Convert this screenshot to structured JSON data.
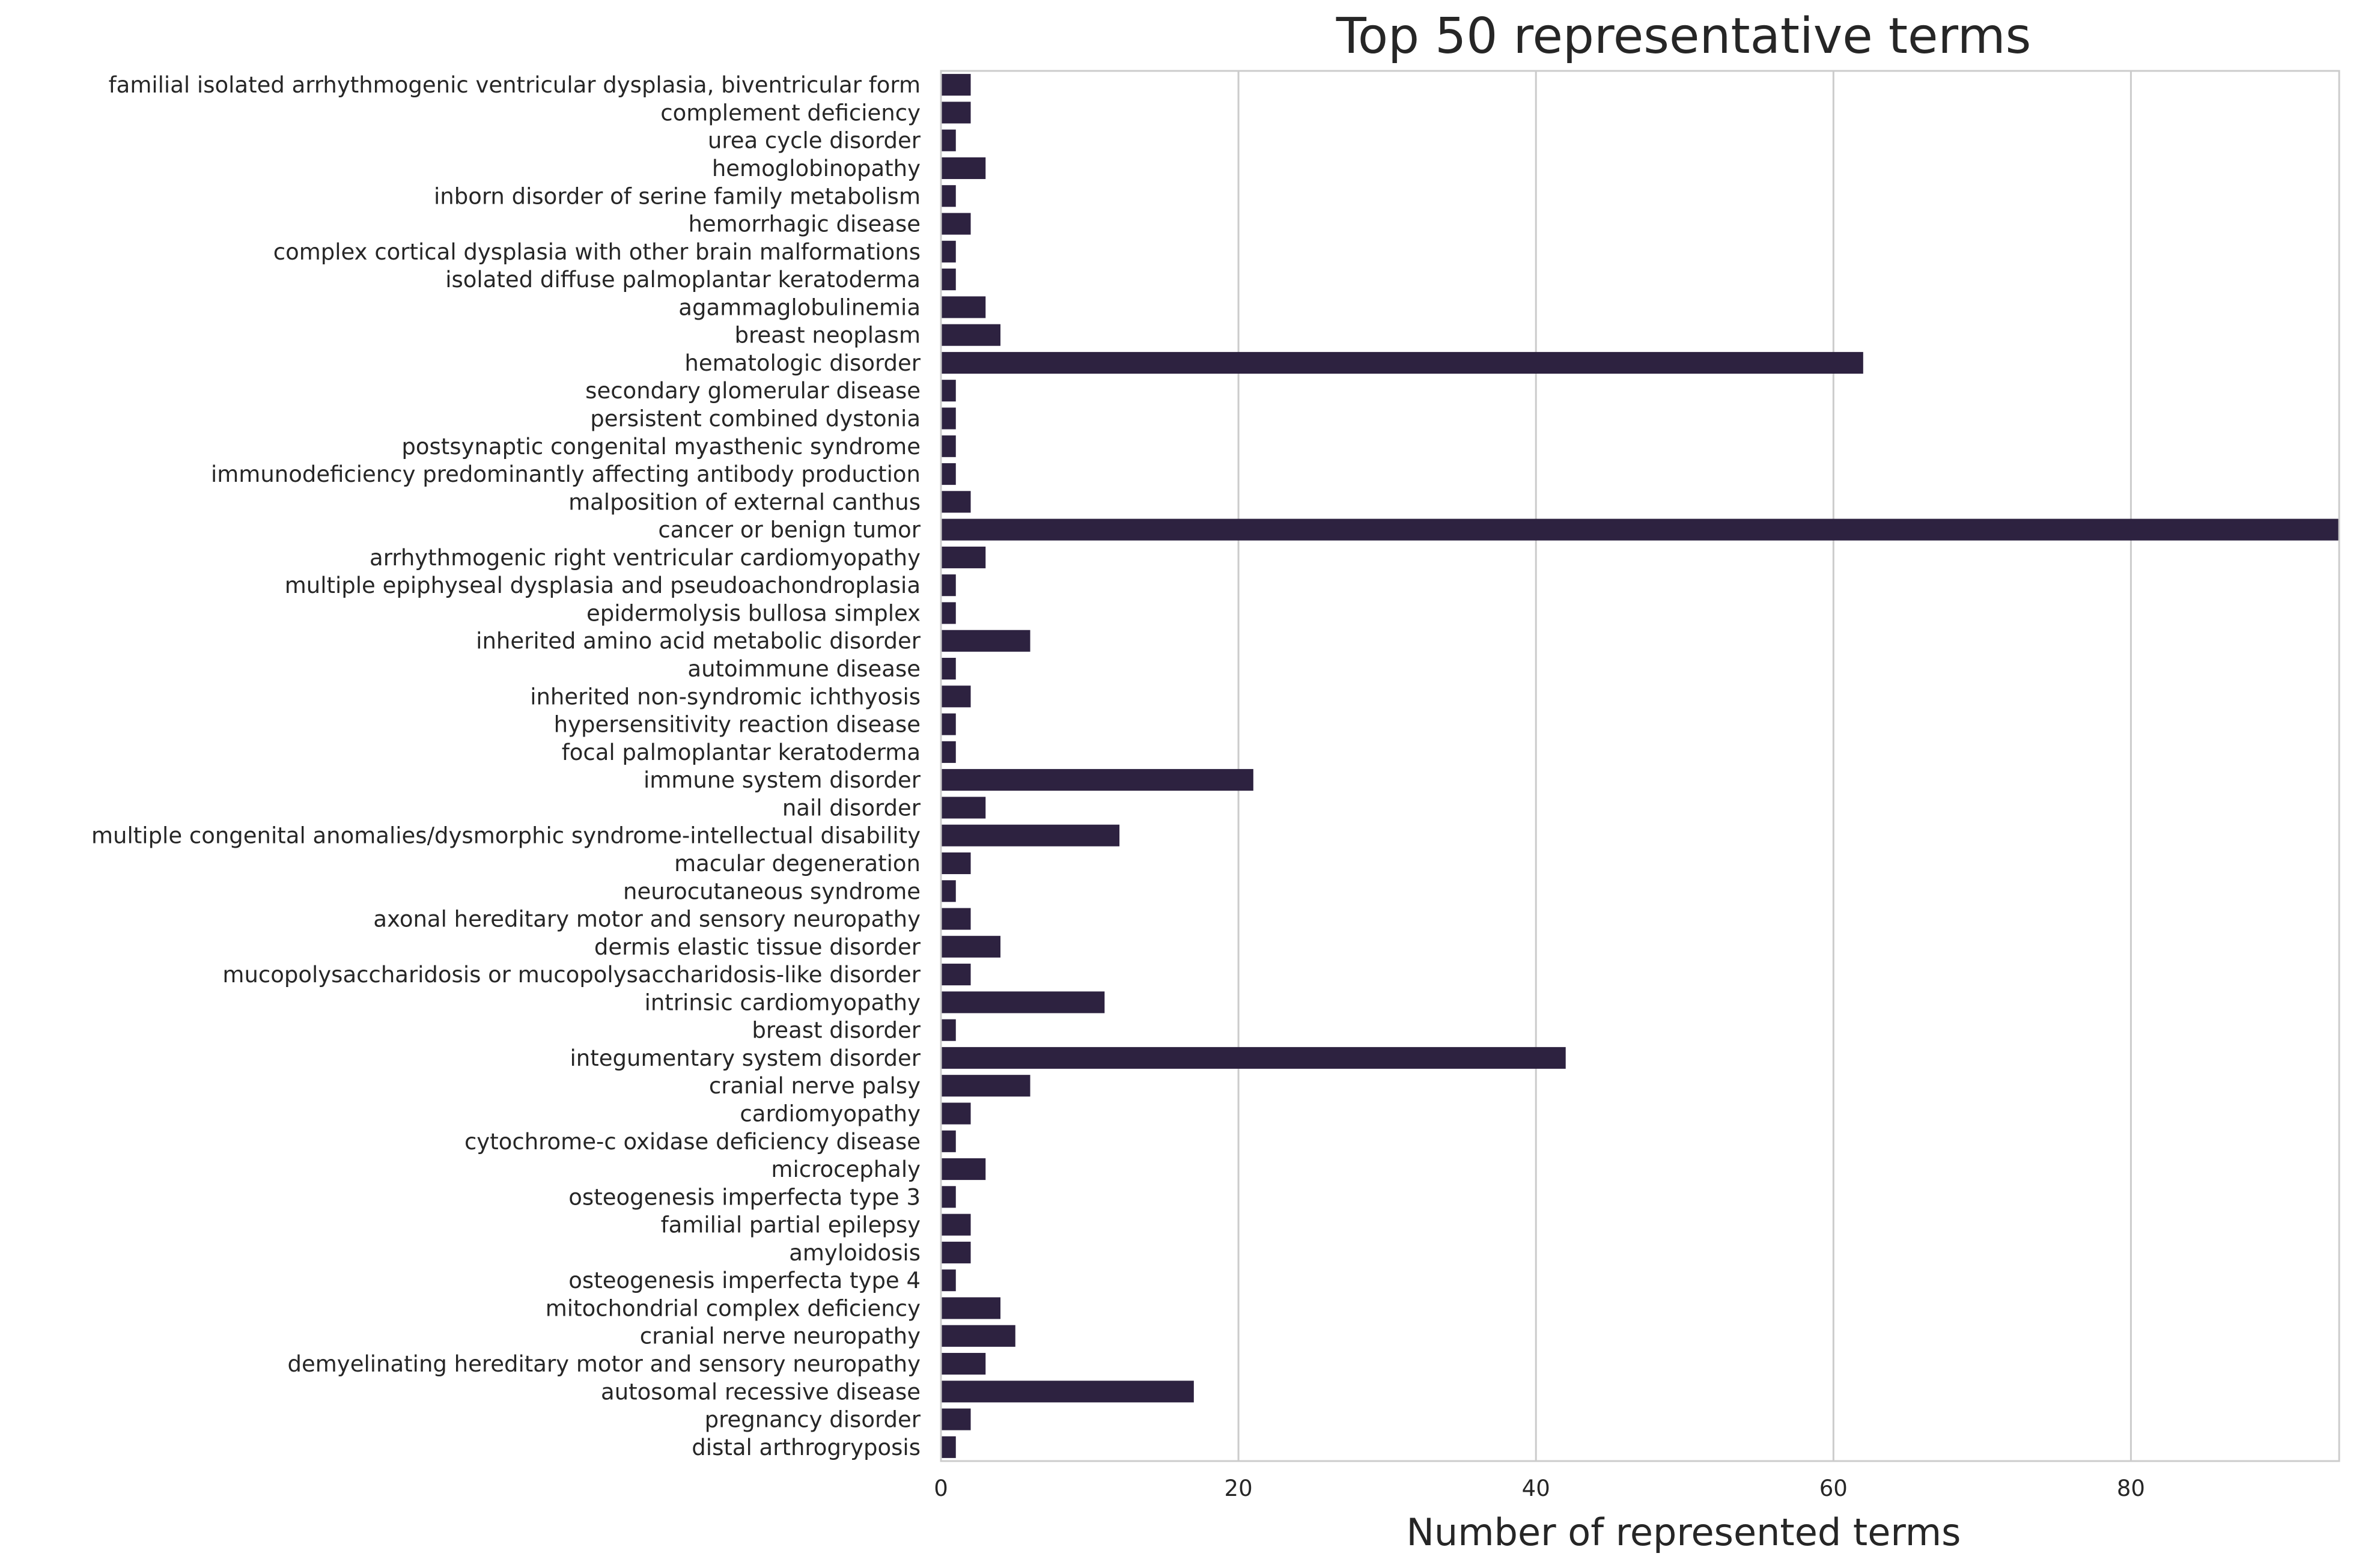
{
  "chart_data": {
    "type": "bar",
    "orientation": "horizontal",
    "title": "Top 50 representative terms",
    "xlabel": "Number of represented terms",
    "ylabel": "",
    "xlim": [
      0,
      94
    ],
    "xticks": [
      0,
      20,
      40,
      60,
      80
    ],
    "grid": "vertical",
    "bar_color": "#2d2240",
    "categories": [
      "familial isolated arrhythmogenic ventricular dysplasia, biventricular form",
      "complement deficiency",
      "urea cycle disorder",
      "hemoglobinopathy",
      "inborn disorder of serine family metabolism",
      "hemorrhagic disease",
      "complex cortical dysplasia with other brain malformations",
      "isolated diffuse palmoplantar keratoderma",
      "agammaglobulinemia",
      "breast neoplasm",
      "hematologic disorder",
      "secondary glomerular disease",
      "persistent combined dystonia",
      "postsynaptic congenital myasthenic syndrome",
      "immunodeficiency predominantly affecting antibody production",
      "malposition of external canthus",
      "cancer or benign tumor",
      "arrhythmogenic right ventricular cardiomyopathy",
      "multiple epiphyseal dysplasia and pseudoachondroplasia",
      "epidermolysis bullosa simplex",
      "inherited amino acid metabolic disorder",
      "autoimmune disease",
      "inherited non-syndromic ichthyosis",
      "hypersensitivity reaction disease",
      "focal palmoplantar keratoderma",
      "immune system disorder",
      "nail disorder",
      "multiple congenital anomalies/dysmorphic syndrome-intellectual disability",
      "macular degeneration",
      "neurocutaneous syndrome",
      "axonal hereditary motor and sensory neuropathy",
      "dermis elastic tissue disorder",
      "mucopolysaccharidosis or mucopolysaccharidosis-like disorder",
      "intrinsic cardiomyopathy",
      "breast disorder",
      "integumentary system disorder",
      "cranial nerve palsy",
      "cardiomyopathy",
      "cytochrome-c oxidase deficiency disease",
      "microcephaly",
      "osteogenesis imperfecta type 3",
      "familial partial epilepsy",
      "amyloidosis",
      "osteogenesis imperfecta type 4",
      "mitochondrial complex deficiency",
      "cranial nerve neuropathy",
      "demyelinating hereditary motor and sensory neuropathy",
      "autosomal recessive disease",
      "pregnancy disorder",
      "distal arthrogryposis"
    ],
    "values": [
      2,
      2,
      1,
      3,
      1,
      2,
      1,
      1,
      3,
      4,
      62,
      1,
      1,
      1,
      1,
      2,
      94,
      3,
      1,
      1,
      6,
      1,
      2,
      1,
      1,
      21,
      3,
      12,
      2,
      1,
      2,
      4,
      2,
      11,
      1,
      42,
      6,
      2,
      1,
      3,
      1,
      2,
      2,
      1,
      4,
      5,
      3,
      17,
      2,
      1
    ]
  }
}
